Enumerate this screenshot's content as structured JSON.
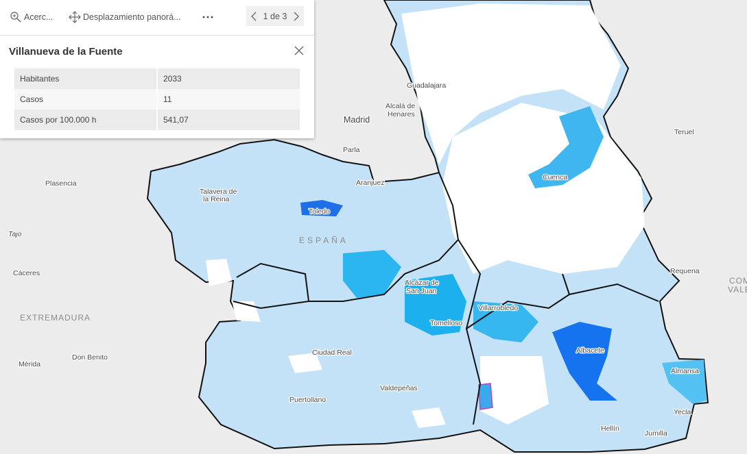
{
  "toolbar": {
    "zoom": "Acerc...",
    "pan": "Desplazamiento panorá...",
    "pager": "1 de 3"
  },
  "popup": {
    "title": "Villanueva de la Fuente",
    "table": {
      "rows": [
        [
          "Habitantes",
          "2033"
        ],
        [
          "Casos",
          "11"
        ],
        [
          "Casos por 100.000 h",
          "541,07"
        ]
      ]
    }
  },
  "map_labels": {
    "guadalajara": "Guadalajara",
    "alcala": [
      "Alcalá de",
      "Henares"
    ],
    "madrid": "Madrid",
    "parla": "Parla",
    "teruel": "Teruel",
    "plasencia": "Plasencia",
    "talavera": [
      "Talavera de",
      "la Reina"
    ],
    "aranjuez": "Aranjuez",
    "cuenca": "Cuenca",
    "toledo": "Toledo",
    "tajo": "Tajo",
    "espana": "ESPAÑA",
    "caceres": "Cáceres",
    "requena": "Requena",
    "com": [
      "COM",
      "VALE"
    ],
    "extremadura": "EXTREMADURA",
    "alcazar": [
      "Alcázar de",
      "San Juan"
    ],
    "villarrobledo": "Villarrobledo",
    "tomelloso": "Tomelloso",
    "donbenito": "Don Benito",
    "ciudadreal": "Ciudad Real",
    "albacete": "Albacete",
    "merida": "Mérida",
    "almansa": "Almansa",
    "valdepenas": "Valdepeñas",
    "puertollano": "Puertollano",
    "yecla": "Yecla",
    "hellin": "Hellín",
    "jumilla": "Jumilla"
  }
}
